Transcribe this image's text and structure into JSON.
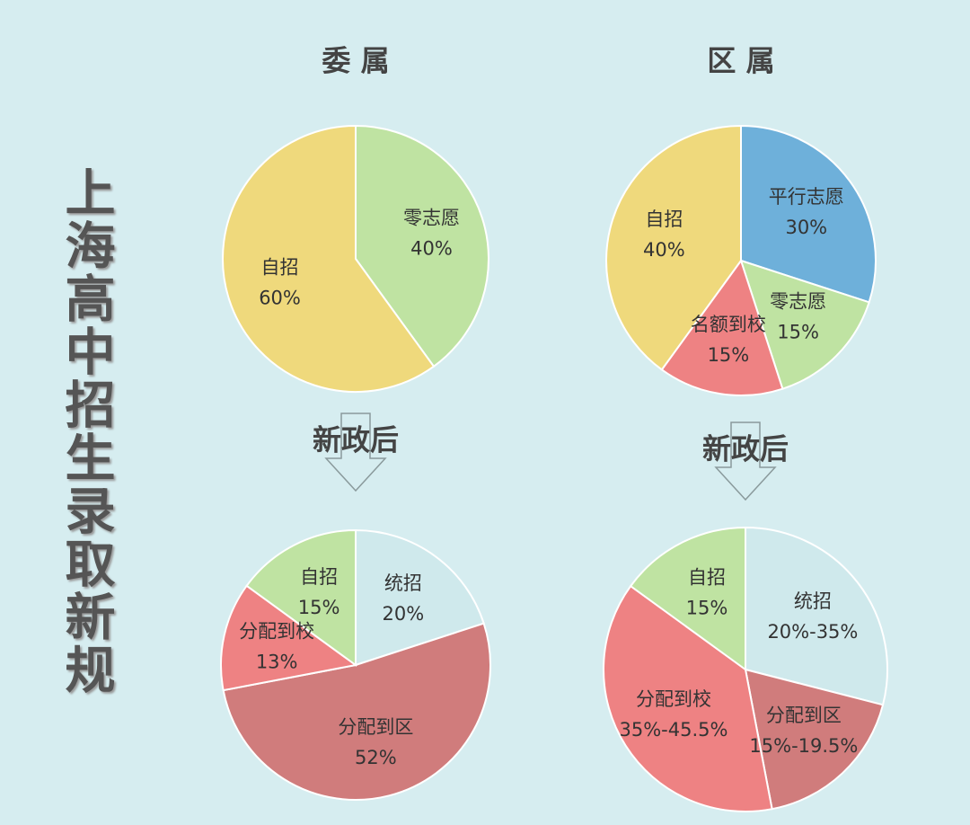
{
  "title": "上海高中招生录取新规",
  "chart_data": [
    {
      "type": "pie",
      "title": "委 属",
      "categories": [
        "零志愿",
        "自招"
      ],
      "values": [
        40,
        60
      ],
      "value_labels": [
        "40%",
        "60%"
      ],
      "colors": [
        "#bfe3a2",
        "#efd97c"
      ]
    },
    {
      "type": "pie",
      "title": "区 属",
      "categories": [
        "平行志愿",
        "零志愿",
        "名额到校",
        "自招"
      ],
      "values": [
        30,
        15,
        15,
        40
      ],
      "value_labels": [
        "30%",
        "15%",
        "15%",
        "40%"
      ],
      "colors": [
        "#6eb0da",
        "#bfe3a2",
        "#ee8283",
        "#efd97c"
      ]
    },
    {
      "type": "pie",
      "annotation": "新政后",
      "categories": [
        "统招",
        "分配到区",
        "分配到校",
        "自招"
      ],
      "values": [
        20,
        52,
        13,
        15
      ],
      "value_labels": [
        "20%",
        "52%",
        "13%",
        "15%"
      ],
      "colors": [
        "#cfe9ec",
        "#d07c7c",
        "#ee8283",
        "#bfe3a2"
      ]
    },
    {
      "type": "pie",
      "annotation": "新政后",
      "categories": [
        "统招",
        "分配到区",
        "分配到校",
        "自招"
      ],
      "values": [
        29,
        18,
        38,
        15
      ],
      "value_labels": [
        "20%-35%",
        "15%-19.5%",
        "35%-45.5%",
        "15%"
      ],
      "colors": [
        "#cfe9ec",
        "#d07c7c",
        "#ee8283",
        "#bfe3a2"
      ]
    }
  ]
}
